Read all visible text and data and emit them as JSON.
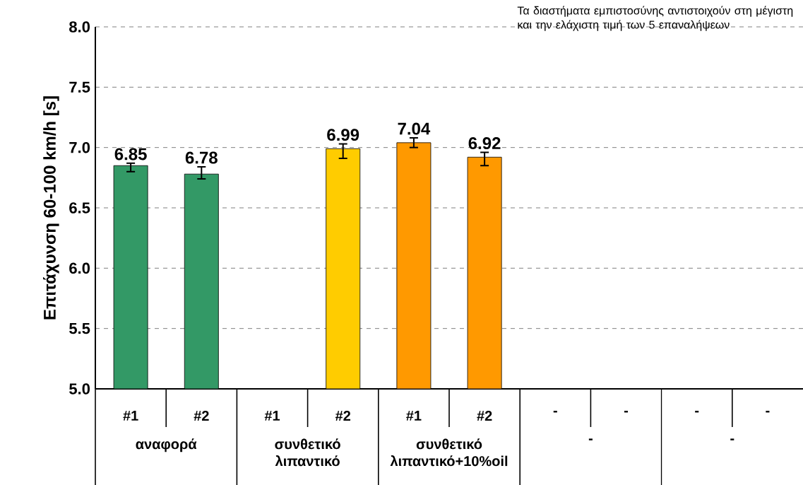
{
  "chart_data": {
    "type": "bar",
    "ylabel": "Επιτάχυνση 60-100 km/h [s]",
    "categories": [
      "#1",
      "#2",
      "#1",
      "#2",
      "#1",
      "#2",
      "-",
      "-",
      "-",
      "-"
    ],
    "values": [
      6.85,
      6.78,
      null,
      6.99,
      7.04,
      6.92,
      null,
      null,
      null,
      null
    ],
    "colors": [
      "#339966",
      "#339966",
      "#ffcc00",
      "#ffcc00",
      "#ff9900",
      "#ff9900",
      "#339966",
      "#339966",
      "#339966",
      "#339966"
    ],
    "errors": [
      [
        6.8,
        6.87
      ],
      [
        6.74,
        6.84
      ],
      null,
      [
        6.91,
        7.03
      ],
      [
        7.0,
        7.08
      ],
      [
        6.85,
        6.96
      ],
      null,
      null,
      null,
      null
    ],
    "data_labels": true,
    "ylim": [
      5,
      8
    ],
    "yticks": [
      {
        "value": 5,
        "label": "5.0"
      },
      {
        "value": 5.5,
        "label": "5.5"
      },
      {
        "value": 6,
        "label": "6.0"
      },
      {
        "value": 6.5,
        "label": "6.5"
      },
      {
        "value": 7,
        "label": "7.0"
      },
      {
        "value": 7.5,
        "label": "7.5"
      },
      {
        "value": 8,
        "label": "8.0"
      }
    ],
    "grid": "y",
    "annotations": [
      "Τα διαστήματα εμπιστοσύνης αντιστοιχούν στη μέγιστη και την ελάχιστη τιμή των 5 επαναλήψεων",
      "αναφορά",
      "συνθετικό λιπαντικό",
      "συνθετικό λιπαντικό+10%oil",
      "-",
      "-"
    ]
  }
}
